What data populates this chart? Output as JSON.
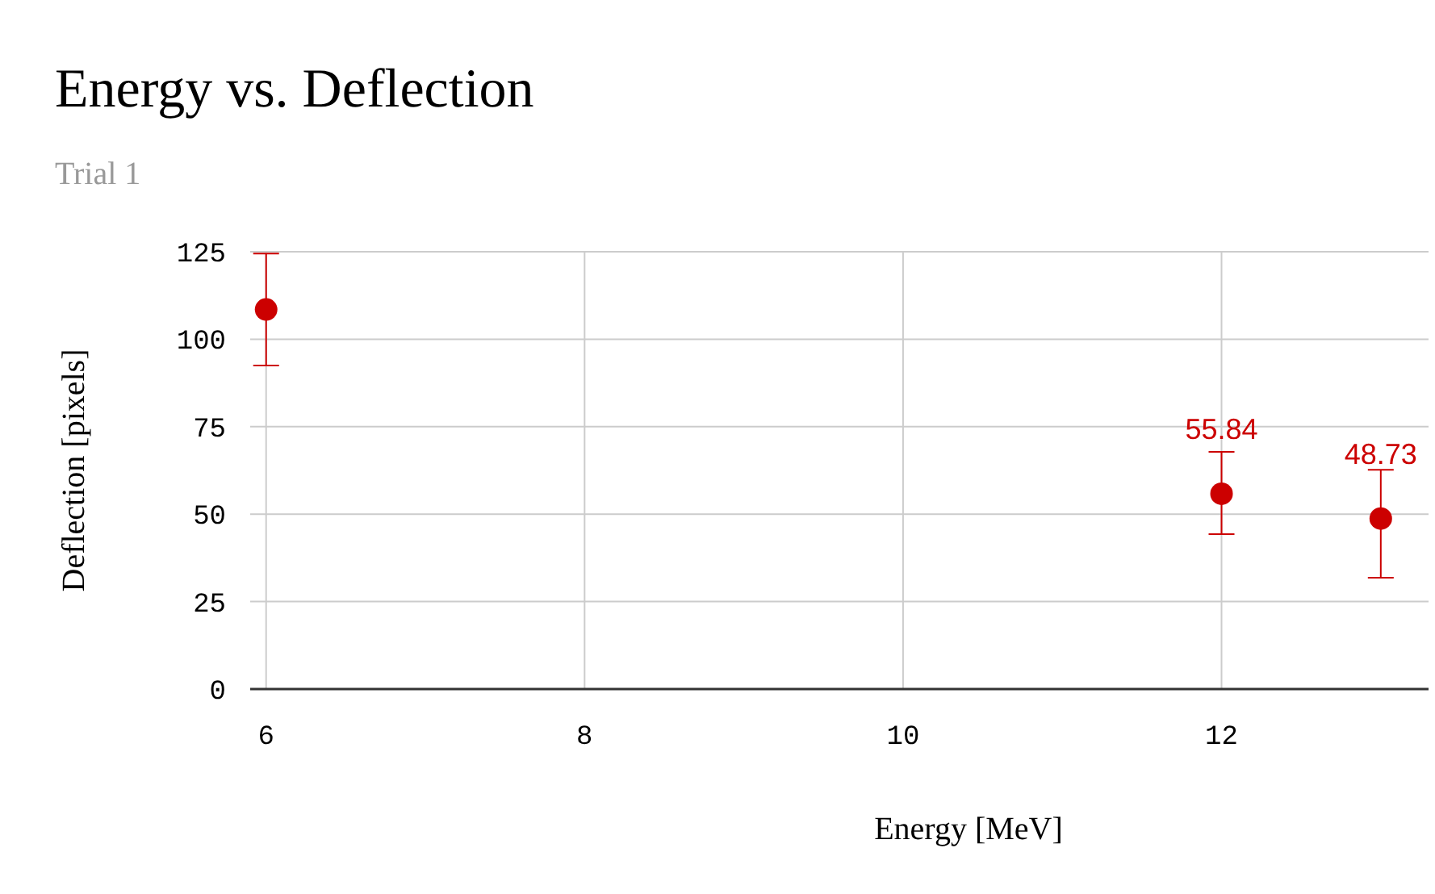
{
  "chart_data": {
    "type": "scatter",
    "title": "Energy vs. Deflection",
    "subtitle": "Trial 1",
    "xlabel": "Energy [MeV]",
    "ylabel": "Deflection [pixels]",
    "x": [
      6,
      12,
      13
    ],
    "series": [
      {
        "color": "#cc0000",
        "values": [
          108.5,
          55.84,
          48.73
        ],
        "errors": [
          [
            92.5,
            124.5
          ],
          [
            44.3,
            67.8
          ],
          [
            31.8,
            62.7
          ]
        ],
        "value_labels": [
          null,
          "55.84",
          "48.73"
        ]
      }
    ],
    "xlim": [
      5.9,
      13.3
    ],
    "xticks": [
      6,
      8,
      10,
      12
    ],
    "ylim": [
      0,
      125
    ],
    "yticks": [
      0,
      25,
      50,
      75,
      100,
      125
    ],
    "grid": true,
    "marker": "circle"
  }
}
